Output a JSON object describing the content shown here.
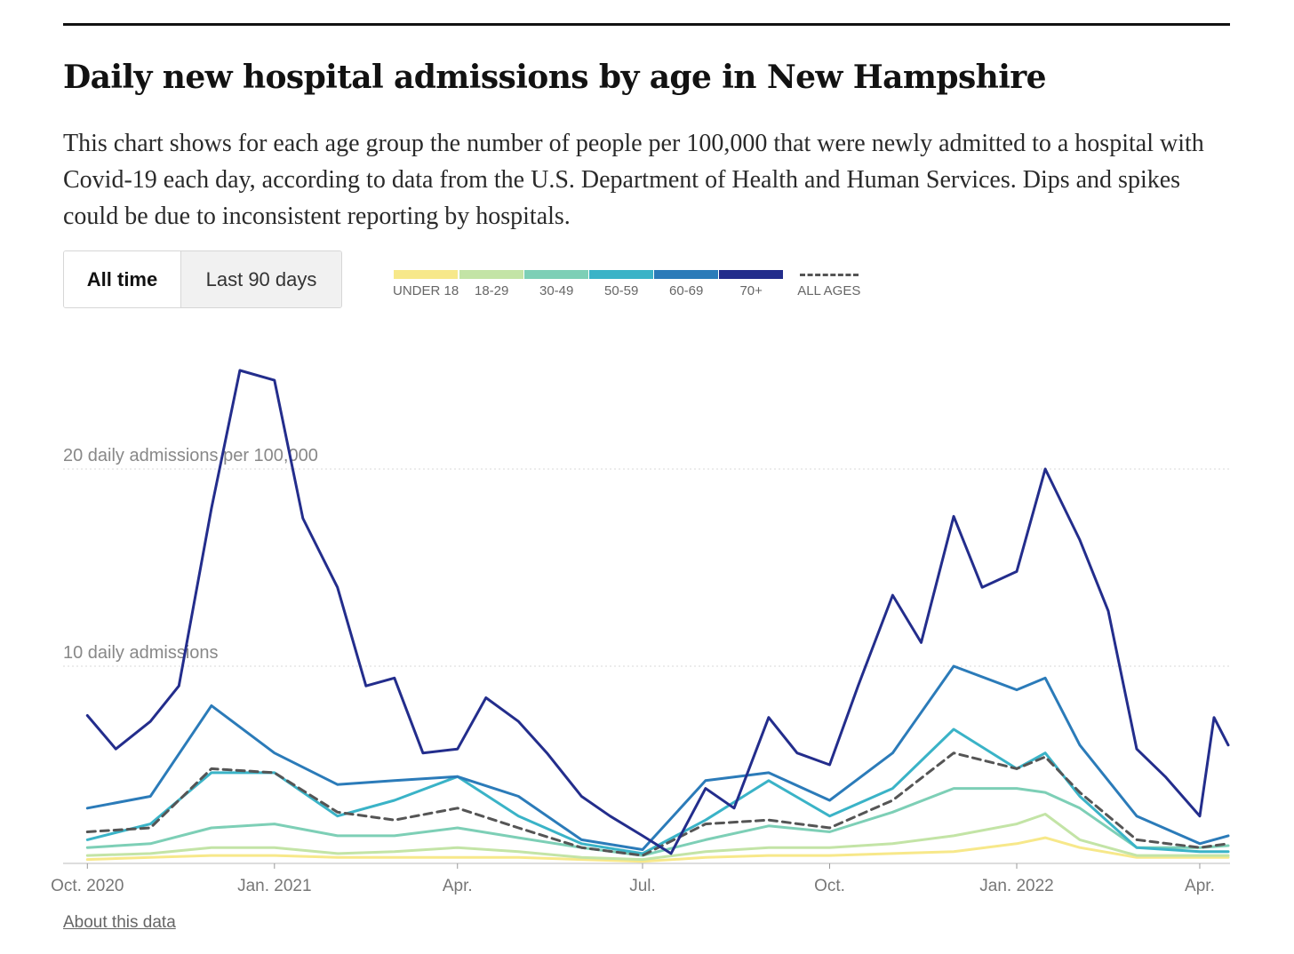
{
  "header": {
    "title": "Daily new hospital admissions by age in New Hampshire",
    "description": "This chart shows for each age group the number of people per 100,000 that were newly admitted to a hospital with Covid-19 each day, according to data from the U.S. Department of Health and Human Services. Dips and spikes could be due to inconsistent reporting by hospitals."
  },
  "controls": {
    "all_time": "All time",
    "last_90": "Last 90 days",
    "selected": "All time"
  },
  "legend": [
    {
      "label": "UNDER 18",
      "color": "#f7e88a"
    },
    {
      "label": "18-29",
      "color": "#c3e4a6"
    },
    {
      "label": "30-49",
      "color": "#7dcfb6"
    },
    {
      "label": "50-59",
      "color": "#3ab3c7"
    },
    {
      "label": "60-69",
      "color": "#2b7bb9"
    },
    {
      "label": "70+",
      "color": "#232d8c"
    },
    {
      "label": "ALL AGES",
      "color": "#555555"
    }
  ],
  "footer": {
    "about": "About this data"
  },
  "chart_data": {
    "type": "line",
    "x_type": "date",
    "x_range": [
      "2020-09-30",
      "2022-04-15"
    ],
    "ylim": [
      0,
      26
    ],
    "y_gridlines": [
      10,
      20
    ],
    "y_tick_labels": [
      "10 daily admissions",
      "20 daily admissions per 100,000"
    ],
    "x_tick_labels": [
      {
        "date": "2020-10-01",
        "label": "Oct. 2020"
      },
      {
        "date": "2021-01-01",
        "label": "Jan. 2021"
      },
      {
        "date": "2021-04-01",
        "label": "Apr."
      },
      {
        "date": "2021-07-01",
        "label": "Jul."
      },
      {
        "date": "2021-10-01",
        "label": "Oct."
      },
      {
        "date": "2022-01-01",
        "label": "Jan. 2022"
      },
      {
        "date": "2022-04-01",
        "label": "Apr."
      }
    ],
    "series": [
      {
        "name": "UNDER 18",
        "color": "#f7e88a",
        "dashed": false,
        "points": [
          [
            "2020-10-01",
            0.2
          ],
          [
            "2020-11-01",
            0.3
          ],
          [
            "2020-12-01",
            0.4
          ],
          [
            "2021-01-01",
            0.4
          ],
          [
            "2021-02-01",
            0.3
          ],
          [
            "2021-03-01",
            0.3
          ],
          [
            "2021-04-01",
            0.3
          ],
          [
            "2021-05-01",
            0.3
          ],
          [
            "2021-06-01",
            0.2
          ],
          [
            "2021-07-01",
            0.1
          ],
          [
            "2021-08-01",
            0.3
          ],
          [
            "2021-09-01",
            0.4
          ],
          [
            "2021-10-01",
            0.4
          ],
          [
            "2021-11-01",
            0.5
          ],
          [
            "2021-12-01",
            0.6
          ],
          [
            "2022-01-01",
            1.0
          ],
          [
            "2022-01-15",
            1.3
          ],
          [
            "2022-02-01",
            0.8
          ],
          [
            "2022-03-01",
            0.3
          ],
          [
            "2022-04-01",
            0.3
          ],
          [
            "2022-04-15",
            0.3
          ]
        ]
      },
      {
        "name": "18-29",
        "color": "#c3e4a6",
        "dashed": false,
        "points": [
          [
            "2020-10-01",
            0.4
          ],
          [
            "2020-11-01",
            0.5
          ],
          [
            "2020-12-01",
            0.8
          ],
          [
            "2021-01-01",
            0.8
          ],
          [
            "2021-02-01",
            0.5
          ],
          [
            "2021-03-01",
            0.6
          ],
          [
            "2021-04-01",
            0.8
          ],
          [
            "2021-05-01",
            0.6
          ],
          [
            "2021-06-01",
            0.3
          ],
          [
            "2021-07-01",
            0.2
          ],
          [
            "2021-08-01",
            0.6
          ],
          [
            "2021-09-01",
            0.8
          ],
          [
            "2021-10-01",
            0.8
          ],
          [
            "2021-11-01",
            1.0
          ],
          [
            "2021-12-01",
            1.4
          ],
          [
            "2022-01-01",
            2.0
          ],
          [
            "2022-01-15",
            2.5
          ],
          [
            "2022-02-01",
            1.2
          ],
          [
            "2022-03-01",
            0.4
          ],
          [
            "2022-04-01",
            0.4
          ],
          [
            "2022-04-15",
            0.4
          ]
        ]
      },
      {
        "name": "30-49",
        "color": "#7dcfb6",
        "dashed": false,
        "points": [
          [
            "2020-10-01",
            0.8
          ],
          [
            "2020-11-01",
            1.0
          ],
          [
            "2020-12-01",
            1.8
          ],
          [
            "2021-01-01",
            2.0
          ],
          [
            "2021-02-01",
            1.4
          ],
          [
            "2021-03-01",
            1.4
          ],
          [
            "2021-04-01",
            1.8
          ],
          [
            "2021-05-01",
            1.3
          ],
          [
            "2021-06-01",
            0.8
          ],
          [
            "2021-07-01",
            0.4
          ],
          [
            "2021-08-01",
            1.2
          ],
          [
            "2021-09-01",
            1.9
          ],
          [
            "2021-10-01",
            1.6
          ],
          [
            "2021-11-01",
            2.6
          ],
          [
            "2021-12-01",
            3.8
          ],
          [
            "2022-01-01",
            3.8
          ],
          [
            "2022-01-15",
            3.6
          ],
          [
            "2022-02-01",
            2.8
          ],
          [
            "2022-03-01",
            0.8
          ],
          [
            "2022-04-01",
            0.8
          ],
          [
            "2022-04-15",
            0.9
          ]
        ]
      },
      {
        "name": "50-59",
        "color": "#3ab3c7",
        "dashed": false,
        "points": [
          [
            "2020-10-01",
            1.2
          ],
          [
            "2020-11-01",
            2.0
          ],
          [
            "2020-12-01",
            4.6
          ],
          [
            "2021-01-01",
            4.6
          ],
          [
            "2021-02-01",
            2.4
          ],
          [
            "2021-03-01",
            3.2
          ],
          [
            "2021-04-01",
            4.4
          ],
          [
            "2021-05-01",
            2.4
          ],
          [
            "2021-06-01",
            1.0
          ],
          [
            "2021-07-01",
            0.5
          ],
          [
            "2021-08-01",
            2.2
          ],
          [
            "2021-09-01",
            4.2
          ],
          [
            "2021-10-01",
            2.4
          ],
          [
            "2021-11-01",
            3.8
          ],
          [
            "2021-12-01",
            6.8
          ],
          [
            "2022-01-01",
            4.8
          ],
          [
            "2022-01-15",
            5.6
          ],
          [
            "2022-02-01",
            3.4
          ],
          [
            "2022-03-01",
            0.8
          ],
          [
            "2022-04-01",
            0.6
          ],
          [
            "2022-04-15",
            0.6
          ]
        ]
      },
      {
        "name": "60-69",
        "color": "#2b7bb9",
        "dashed": false,
        "points": [
          [
            "2020-10-01",
            2.8
          ],
          [
            "2020-11-01",
            3.4
          ],
          [
            "2020-12-01",
            8.0
          ],
          [
            "2021-01-01",
            5.6
          ],
          [
            "2021-02-01",
            4.0
          ],
          [
            "2021-03-01",
            4.2
          ],
          [
            "2021-04-01",
            4.4
          ],
          [
            "2021-05-01",
            3.4
          ],
          [
            "2021-06-01",
            1.2
          ],
          [
            "2021-07-01",
            0.7
          ],
          [
            "2021-08-01",
            4.2
          ],
          [
            "2021-09-01",
            4.6
          ],
          [
            "2021-10-01",
            3.2
          ],
          [
            "2021-11-01",
            5.6
          ],
          [
            "2021-12-01",
            10.0
          ],
          [
            "2022-01-01",
            8.8
          ],
          [
            "2022-01-15",
            9.4
          ],
          [
            "2022-02-01",
            6.0
          ],
          [
            "2022-03-01",
            2.4
          ],
          [
            "2022-04-01",
            1.0
          ],
          [
            "2022-04-15",
            1.4
          ]
        ]
      },
      {
        "name": "70+",
        "color": "#232d8c",
        "dashed": false,
        "points": [
          [
            "2020-10-01",
            7.5
          ],
          [
            "2020-10-15",
            5.8
          ],
          [
            "2020-11-01",
            7.2
          ],
          [
            "2020-11-15",
            9.0
          ],
          [
            "2020-12-01",
            18.0
          ],
          [
            "2020-12-15",
            25.0
          ],
          [
            "2021-01-01",
            24.5
          ],
          [
            "2021-01-15",
            17.5
          ],
          [
            "2021-02-01",
            14.0
          ],
          [
            "2021-02-15",
            9.0
          ],
          [
            "2021-03-01",
            9.4
          ],
          [
            "2021-03-15",
            5.6
          ],
          [
            "2021-04-01",
            5.8
          ],
          [
            "2021-04-15",
            8.4
          ],
          [
            "2021-05-01",
            7.2
          ],
          [
            "2021-05-15",
            5.6
          ],
          [
            "2021-06-01",
            3.4
          ],
          [
            "2021-06-15",
            2.4
          ],
          [
            "2021-07-01",
            1.4
          ],
          [
            "2021-07-15",
            0.5
          ],
          [
            "2021-08-01",
            3.8
          ],
          [
            "2021-08-15",
            2.8
          ],
          [
            "2021-09-01",
            7.4
          ],
          [
            "2021-09-15",
            5.6
          ],
          [
            "2021-10-01",
            5.0
          ],
          [
            "2021-10-15",
            9.0
          ],
          [
            "2021-11-01",
            13.6
          ],
          [
            "2021-11-15",
            11.2
          ],
          [
            "2021-12-01",
            17.6
          ],
          [
            "2021-12-15",
            14.0
          ],
          [
            "2022-01-01",
            14.8
          ],
          [
            "2022-01-15",
            20.0
          ],
          [
            "2022-02-01",
            16.4
          ],
          [
            "2022-02-15",
            12.8
          ],
          [
            "2022-03-01",
            5.8
          ],
          [
            "2022-03-15",
            4.4
          ],
          [
            "2022-04-01",
            2.4
          ],
          [
            "2022-04-08",
            7.4
          ],
          [
            "2022-04-15",
            6.0
          ]
        ]
      },
      {
        "name": "ALL AGES",
        "color": "#555555",
        "dashed": true,
        "points": [
          [
            "2020-10-01",
            1.6
          ],
          [
            "2020-11-01",
            1.8
          ],
          [
            "2020-12-01",
            4.8
          ],
          [
            "2021-01-01",
            4.6
          ],
          [
            "2021-02-01",
            2.6
          ],
          [
            "2021-03-01",
            2.2
          ],
          [
            "2021-04-01",
            2.8
          ],
          [
            "2021-05-01",
            1.8
          ],
          [
            "2021-06-01",
            0.8
          ],
          [
            "2021-07-01",
            0.4
          ],
          [
            "2021-08-01",
            2.0
          ],
          [
            "2021-09-01",
            2.2
          ],
          [
            "2021-10-01",
            1.8
          ],
          [
            "2021-11-01",
            3.2
          ],
          [
            "2021-12-01",
            5.6
          ],
          [
            "2022-01-01",
            4.8
          ],
          [
            "2022-01-15",
            5.4
          ],
          [
            "2022-02-01",
            3.6
          ],
          [
            "2022-03-01",
            1.2
          ],
          [
            "2022-04-01",
            0.8
          ],
          [
            "2022-04-15",
            1.0
          ]
        ]
      }
    ]
  }
}
